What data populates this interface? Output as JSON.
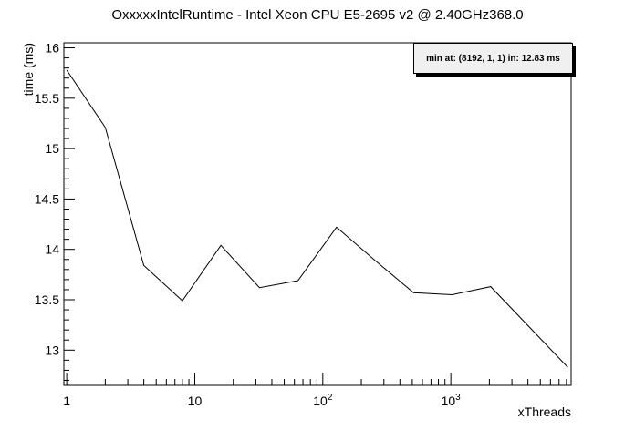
{
  "chart_data": {
    "type": "line",
    "title": "OxxxxxIntelRuntime - Intel Xeon CPU E5-2695 v2 @ 2.40GHz368.0",
    "xlabel": "xThreads",
    "ylabel": "time (ms)",
    "xscale": "log",
    "xlim": [
      0.95,
      8700
    ],
    "ylim": [
      12.65,
      16.05
    ],
    "grid": false,
    "legend_text": "min at: (8192, 1, 1) in: 12.83 ms",
    "legend_position": "top-right",
    "line_color": "#000000",
    "x_ticks": [
      {
        "value": 1,
        "label": "1"
      },
      {
        "value": 10,
        "label": "10"
      },
      {
        "value": 100,
        "label": "10",
        "exp": "2"
      },
      {
        "value": 1000,
        "label": "10",
        "exp": "3"
      }
    ],
    "y_ticks": [
      {
        "value": 13,
        "label": "13"
      },
      {
        "value": 13.5,
        "label": "13.5"
      },
      {
        "value": 14,
        "label": "14"
      },
      {
        "value": 14.5,
        "label": "14.5"
      },
      {
        "value": 15,
        "label": "15"
      },
      {
        "value": 15.5,
        "label": "15.5"
      },
      {
        "value": 16,
        "label": "16"
      }
    ],
    "series": [
      {
        "x": [
          1,
          2,
          4,
          8,
          16,
          32,
          64,
          128,
          256,
          512,
          1024,
          2048,
          4096,
          8192
        ],
        "y": [
          15.78,
          15.21,
          13.84,
          13.49,
          14.04,
          13.62,
          13.69,
          14.22,
          13.89,
          13.57,
          13.55,
          13.63,
          13.23,
          12.83
        ]
      }
    ]
  }
}
